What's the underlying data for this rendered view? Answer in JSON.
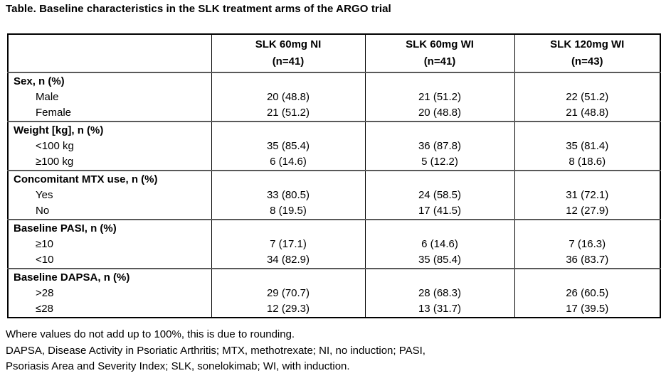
{
  "title": "Table. Baseline characteristics in the SLK treatment arms of the ARGO trial",
  "table": {
    "columns": [
      {
        "label": "SLK 60mg NI",
        "sub": "(n=41)"
      },
      {
        "label": "SLK 60mg WI",
        "sub": "(n=41)"
      },
      {
        "label": "SLK 120mg WI",
        "sub": "(n=43)"
      }
    ],
    "groups": [
      {
        "label": "Sex, n (%)",
        "rows": [
          {
            "label": "Male",
            "values": [
              "20 (48.8)",
              "21 (51.2)",
              "22 (51.2)"
            ]
          },
          {
            "label": "Female",
            "values": [
              "21 (51.2)",
              "20 (48.8)",
              "21 (48.8)"
            ]
          }
        ]
      },
      {
        "label": "Weight [kg], n (%)",
        "rows": [
          {
            "label": "<100 kg",
            "values": [
              "35 (85.4)",
              "36 (87.8)",
              "35 (81.4)"
            ]
          },
          {
            "label": "≥100 kg",
            "values": [
              "6 (14.6)",
              "5 (12.2)",
              "8 (18.6)"
            ]
          }
        ]
      },
      {
        "label": "Concomitant MTX use, n (%)",
        "rows": [
          {
            "label": "Yes",
            "values": [
              "33 (80.5)",
              "24 (58.5)",
              "31 (72.1)"
            ]
          },
          {
            "label": "No",
            "values": [
              "8 (19.5)",
              "17 (41.5)",
              "12 (27.9)"
            ]
          }
        ]
      },
      {
        "label": "Baseline PASI, n (%)",
        "rows": [
          {
            "label": "≥10",
            "values": [
              "7 (17.1)",
              "6 (14.6)",
              "7 (16.3)"
            ]
          },
          {
            "label": "<10",
            "values": [
              "34 (82.9)",
              "35 (85.4)",
              "36 (83.7)"
            ]
          }
        ]
      },
      {
        "label": "Baseline DAPSA, n (%)",
        "rows": [
          {
            "label": ">28",
            "values": [
              "29 (70.7)",
              "28 (68.3)",
              "26 (60.5)"
            ]
          },
          {
            "label": "≤28",
            "values": [
              "12 (29.3)",
              "13 (31.7)",
              "17 (39.5)"
            ]
          }
        ]
      }
    ]
  },
  "footnotes": [
    "Where values do not add up to 100%, this is due to rounding.",
    "DAPSA, Disease Activity in Psoriatic Arthritis; MTX, methotrexate; NI, no induction; PASI,",
    "Psoriasis Area and Severity Index; SLK, sonelokimab; WI, with induction."
  ]
}
